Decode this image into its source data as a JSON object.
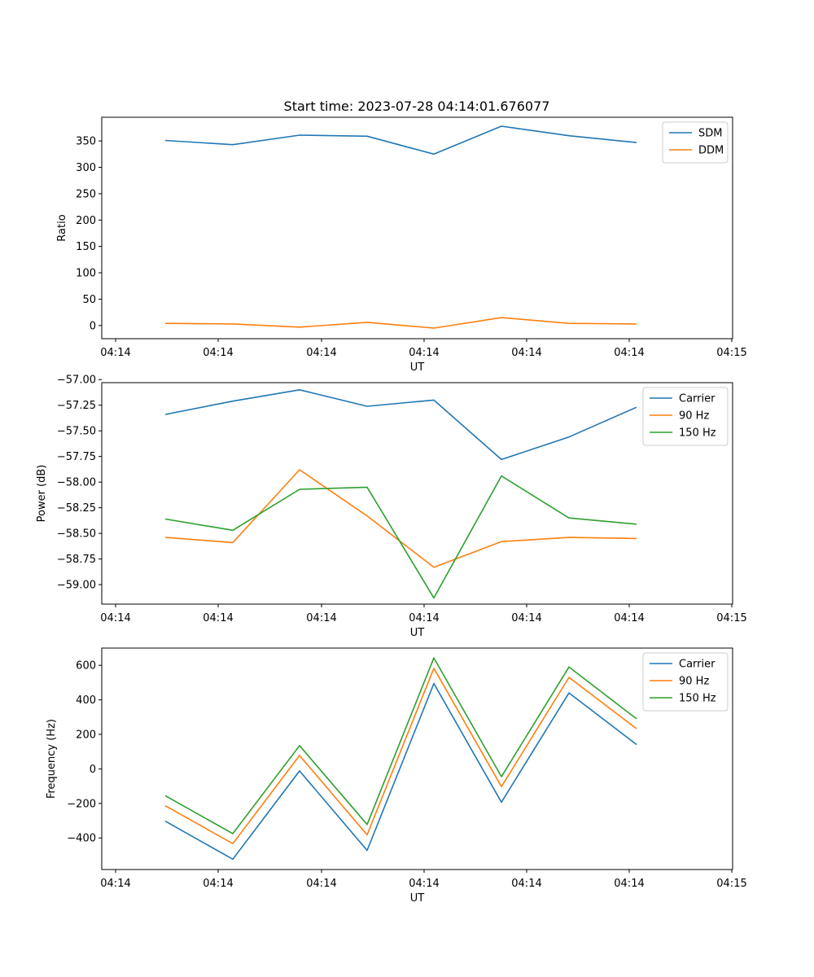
{
  "colors": {
    "c0": "#1f77b4",
    "c1": "#ff7f0e",
    "c2": "#2ca02c"
  },
  "chart_data": [
    {
      "type": "line",
      "title": "Start time: 2023-07-28 04:14:01.676077",
      "xlabel": "UT",
      "ylabel": "Ratio",
      "x_tick_labels": [
        "04:14",
        "04:14",
        "04:14",
        "04:14",
        "04:14",
        "04:14",
        "04:14",
        "04:15"
      ],
      "ylim": [
        -25,
        395
      ],
      "y_ticks": [
        0,
        50,
        100,
        150,
        200,
        250,
        300,
        350
      ],
      "y_tick_labels": [
        "0",
        "50",
        "100",
        "150",
        "200",
        "250",
        "300",
        "350"
      ],
      "legend_position": "upper-right",
      "series": [
        {
          "name": "SDM",
          "color": "#1f77b4",
          "values": [
            351,
            343,
            361,
            359,
            325,
            378,
            360,
            347
          ]
        },
        {
          "name": "DDM",
          "color": "#ff7f0e",
          "values": [
            4,
            3,
            -3,
            6,
            -5,
            15,
            4,
            3
          ]
        }
      ]
    },
    {
      "type": "line",
      "title": "",
      "xlabel": "UT",
      "ylabel": "Power (dB)",
      "x_tick_labels": [
        "04:14",
        "04:14",
        "04:14",
        "04:14",
        "04:14",
        "04:14",
        "04:14",
        "04:15"
      ],
      "ylim": [
        -59.19,
        -57.03
      ],
      "y_ticks": [
        -59.0,
        -58.75,
        -58.5,
        -58.25,
        -58.0,
        -57.75,
        -57.5,
        -57.25,
        -57.0
      ],
      "y_tick_labels": [
        "−59.00",
        "−58.75",
        "−58.50",
        "−58.25",
        "−58.00",
        "−57.75",
        "−57.50",
        "−57.25",
        "−57.00"
      ],
      "legend_position": "upper-right",
      "series": [
        {
          "name": "Carrier",
          "color": "#1f77b4",
          "values": [
            -57.34,
            -57.21,
            -57.1,
            -57.26,
            -57.2,
            -57.78,
            -57.56,
            -57.27
          ]
        },
        {
          "name": "90 Hz",
          "color": "#ff7f0e",
          "values": [
            -58.54,
            -58.59,
            -57.88,
            -58.33,
            -58.83,
            -58.58,
            -58.54,
            -58.55
          ]
        },
        {
          "name": "150 Hz",
          "color": "#2ca02c",
          "values": [
            -58.36,
            -58.47,
            -58.07,
            -58.05,
            -59.13,
            -57.94,
            -58.35,
            -58.41
          ]
        }
      ]
    },
    {
      "type": "line",
      "title": "",
      "xlabel": "UT",
      "ylabel": "Frequency (Hz)",
      "x_tick_labels": [
        "04:14",
        "04:14",
        "04:14",
        "04:14",
        "04:14",
        "04:14",
        "04:14",
        "04:15"
      ],
      "ylim": [
        -583,
        700
      ],
      "y_ticks": [
        -400,
        -200,
        0,
        200,
        400,
        600
      ],
      "y_tick_labels": [
        "−400",
        "−200",
        "0",
        "200",
        "400",
        "600"
      ],
      "legend_position": "upper-right",
      "series": [
        {
          "name": "Carrier",
          "color": "#1f77b4",
          "values": [
            -303,
            -523,
            -12,
            -472,
            495,
            -193,
            440,
            141
          ]
        },
        {
          "name": "90 Hz",
          "color": "#ff7f0e",
          "values": [
            -213,
            -433,
            78,
            -382,
            583,
            -103,
            530,
            233
          ]
        },
        {
          "name": "150 Hz",
          "color": "#2ca02c",
          "values": [
            -155,
            -375,
            135,
            -322,
            643,
            -45,
            590,
            290
          ]
        }
      ]
    }
  ]
}
